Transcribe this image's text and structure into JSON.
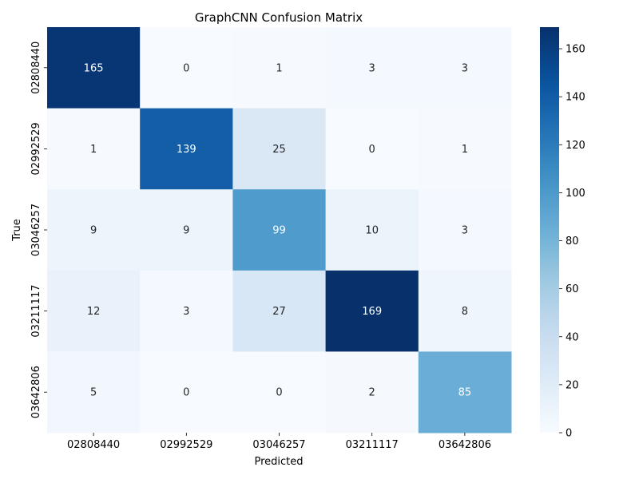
{
  "chart_data": {
    "type": "heatmap",
    "title": "GraphCNN Confusion Matrix",
    "xlabel": "Predicted",
    "ylabel": "True",
    "x_categories": [
      "02808440",
      "02992529",
      "03046257",
      "03211117",
      "03642806"
    ],
    "y_categories": [
      "02808440",
      "02992529",
      "03046257",
      "03211117",
      "03642806"
    ],
    "values": [
      [
        165,
        0,
        1,
        3,
        3
      ],
      [
        1,
        139,
        25,
        0,
        1
      ],
      [
        9,
        9,
        99,
        10,
        3
      ],
      [
        12,
        3,
        27,
        169,
        8
      ],
      [
        5,
        0,
        0,
        2,
        85
      ]
    ],
    "colorbar": {
      "min": 0,
      "max": 169,
      "ticks": [
        0,
        20,
        40,
        60,
        80,
        100,
        120,
        140,
        160
      ],
      "colormap": "Blues"
    },
    "annotation_colors": {
      "light": "#ffffff",
      "dark": "#262626"
    },
    "grid": false
  }
}
